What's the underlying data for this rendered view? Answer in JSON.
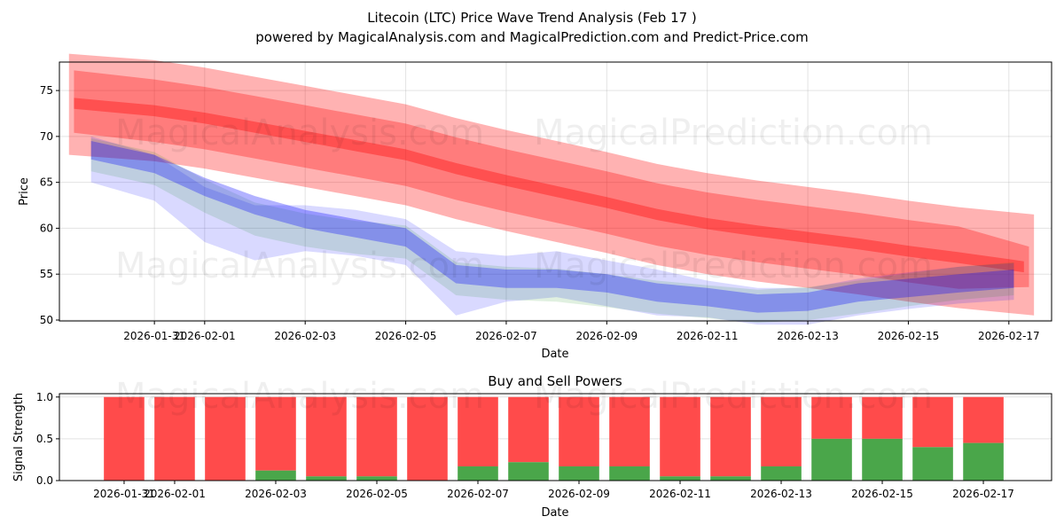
{
  "title": "Litecoin (LTC) Price Wave Trend Analysis (Feb 17 )",
  "subtitle": "powered by MagicalAnalysis.com and MagicalPrediction.com and Predict-Price.com",
  "watermarks": [
    "MagicalAnalysis.com",
    "MagicalPrediction.com"
  ],
  "chart_data": [
    {
      "type": "area",
      "title": "",
      "xlabel": "Date",
      "ylabel": "Price",
      "x_ticks": [
        "2026-01-31",
        "2026-02-01",
        "2026-02-03",
        "2026-02-05",
        "2026-02-07",
        "2026-02-09",
        "2026-02-11",
        "2026-02-13",
        "2026-02-15",
        "2026-02-17"
      ],
      "x_tick_days": [
        0,
        1,
        3,
        5,
        7,
        9,
        11,
        13,
        15,
        17
      ],
      "y_ticks": [
        50,
        55,
        60,
        65,
        70,
        75
      ],
      "ylim": [
        49.9,
        78.1
      ],
      "xlim_days_from_2026_01_31": [
        -1.89,
        17.85
      ],
      "grid": true,
      "bands": [
        {
          "name": "red-outer",
          "color": "#ff0000",
          "opacity": 0.3,
          "days": [
            -1.7,
            0,
            1,
            2,
            3,
            4,
            5,
            6,
            7,
            8,
            9,
            10,
            11,
            12,
            13,
            14,
            15,
            16,
            17.5
          ],
          "center": [
            73.5,
            72.8,
            72,
            71,
            70,
            69,
            68,
            66.5,
            65.2,
            64,
            62.8,
            61.5,
            60.5,
            59.7,
            59,
            58.3,
            57.5,
            56.8,
            56
          ],
          "half_width": [
            5.5,
            5.5,
            5.5,
            5.5,
            5.5,
            5.5,
            5.5,
            5.5,
            5.5,
            5.5,
            5.5,
            5.5,
            5.5,
            5.5,
            5.5,
            5.5,
            5.5,
            5.5,
            5.5
          ]
        },
        {
          "name": "red-mid",
          "color": "#ff0000",
          "opacity": 0.3,
          "days": [
            -1.6,
            0,
            1,
            2,
            3,
            4,
            5,
            6,
            7,
            8,
            9,
            10,
            11,
            12,
            13,
            14,
            15,
            16,
            17.4
          ],
          "center": [
            73.8,
            72.8,
            72,
            71,
            70,
            69,
            68,
            66.5,
            65.2,
            64,
            62.8,
            61.5,
            60.5,
            59.7,
            59,
            58.3,
            57.5,
            56.8,
            55.8
          ],
          "half_width": [
            3.4,
            3.4,
            3.4,
            3.4,
            3.4,
            3.4,
            3.4,
            3.4,
            3.4,
            3.4,
            3.4,
            3.4,
            3.4,
            3.4,
            3.4,
            3.4,
            3.4,
            3.4,
            2.2
          ]
        },
        {
          "name": "red-core",
          "color": "#ff0000",
          "opacity": 0.35,
          "days": [
            -1.6,
            0,
            1,
            2,
            3,
            4,
            5,
            6,
            7,
            8,
            9,
            10,
            11,
            12,
            13,
            14,
            15,
            16,
            17.3
          ],
          "center": [
            73.6,
            72.8,
            72,
            71,
            70,
            69,
            68,
            66.5,
            65.2,
            64,
            62.8,
            61.5,
            60.5,
            59.7,
            59,
            58.3,
            57.5,
            56.8,
            55.8
          ],
          "half_width": [
            0.6,
            0.6,
            0.6,
            0.6,
            0.6,
            0.6,
            0.6,
            0.6,
            0.6,
            0.6,
            0.6,
            0.6,
            0.6,
            0.6,
            0.6,
            0.6,
            0.6,
            0.6,
            0.6
          ]
        },
        {
          "name": "blue-outer",
          "color": "#0000ff",
          "opacity": 0.15,
          "days": [
            -1.26,
            0,
            1,
            2,
            3,
            4,
            5,
            6,
            7,
            8,
            9,
            10,
            11,
            12,
            13,
            14,
            15,
            16,
            17.1
          ],
          "center": [
            67.5,
            65.5,
            61.5,
            59.5,
            60,
            59.5,
            58.5,
            54,
            54.5,
            55,
            54,
            53,
            52.3,
            51.5,
            51.5,
            52.5,
            53.2,
            53.8,
            54.2
          ],
          "half_width": [
            2.5,
            2.5,
            3,
            3,
            2.5,
            2.5,
            2.5,
            3.5,
            2.5,
            2.5,
            2.5,
            2.5,
            2,
            2,
            2,
            2,
            2,
            2,
            2
          ]
        },
        {
          "name": "green-band",
          "color": "#008000",
          "opacity": 0.12,
          "days": [
            -1.26,
            0,
            1,
            2,
            3,
            4,
            5,
            6,
            7,
            8,
            9,
            10,
            11,
            12,
            13,
            14,
            15,
            16,
            17.1
          ],
          "center": [
            68,
            66.5,
            63.5,
            61,
            59.8,
            59,
            58.5,
            54.5,
            54,
            53.8,
            53.2,
            52.5,
            52,
            51.5,
            51.8,
            52.5,
            53.3,
            54,
            54.5
          ],
          "half_width": [
            1.8,
            1.8,
            1.8,
            1.8,
            1.8,
            1.8,
            1.8,
            1.8,
            1.8,
            1.8,
            1.8,
            1.8,
            1.8,
            1.8,
            1.8,
            1.8,
            1.8,
            1.8,
            1.8
          ]
        },
        {
          "name": "blue-core",
          "color": "#0000ff",
          "opacity": 0.3,
          "days": [
            -1.26,
            0,
            1,
            2,
            3,
            4,
            5,
            6,
            7,
            8,
            9,
            10,
            11,
            12,
            13,
            14,
            15,
            16,
            17.1
          ],
          "center": [
            68.5,
            67,
            64.5,
            62.5,
            61,
            60,
            59,
            55,
            54.5,
            54.5,
            54,
            53,
            52.5,
            51.8,
            52,
            53,
            53.5,
            54,
            54.5
          ],
          "half_width": [
            1,
            1,
            1,
            1,
            1,
            1,
            1,
            1,
            1,
            1,
            1,
            1,
            1,
            1,
            1,
            1,
            1,
            1,
            1
          ]
        }
      ]
    },
    {
      "type": "bar",
      "title": "Buy and Sell Powers",
      "xlabel": "Date",
      "ylabel": "Signal Strength",
      "x_ticks": [
        "2026-01-31",
        "2026-02-01",
        "2026-02-03",
        "2026-02-05",
        "2026-02-07",
        "2026-02-09",
        "2026-02-11",
        "2026-02-13",
        "2026-02-15",
        "2026-02-17"
      ],
      "x_tick_days": [
        0,
        1,
        3,
        5,
        7,
        9,
        11,
        13,
        15,
        17
      ],
      "y_ticks": [
        "0.0",
        "0.5",
        "1.0"
      ],
      "ylim": [
        0,
        1.04
      ],
      "xlim_days_from_2026_01_31": [
        -1.28,
        18.35
      ],
      "categories": [
        "2026-01-31",
        "2026-02-01",
        "2026-02-02",
        "2026-02-03",
        "2026-02-04",
        "2026-02-05",
        "2026-02-06",
        "2026-02-07",
        "2026-02-08",
        "2026-02-09",
        "2026-02-10",
        "2026-02-11",
        "2026-02-12",
        "2026-02-13",
        "2026-02-14",
        "2026-02-15",
        "2026-02-16",
        "2026-02-17"
      ],
      "series": [
        {
          "name": "Buy",
          "color": "#4aa64a",
          "values": [
            0,
            0,
            0,
            0.12,
            0.05,
            0.05,
            0,
            0.17,
            0.22,
            0.17,
            0.17,
            0.05,
            0.05,
            0.17,
            0.5,
            0.5,
            0.4,
            0.45
          ]
        },
        {
          "name": "Sell",
          "color": "#ff4b4b",
          "values": [
            1,
            1,
            1,
            0.88,
            0.95,
            0.95,
            1,
            0.83,
            0.78,
            0.83,
            0.83,
            0.95,
            0.95,
            0.83,
            0.5,
            0.5,
            0.6,
            0.55
          ]
        }
      ]
    }
  ]
}
